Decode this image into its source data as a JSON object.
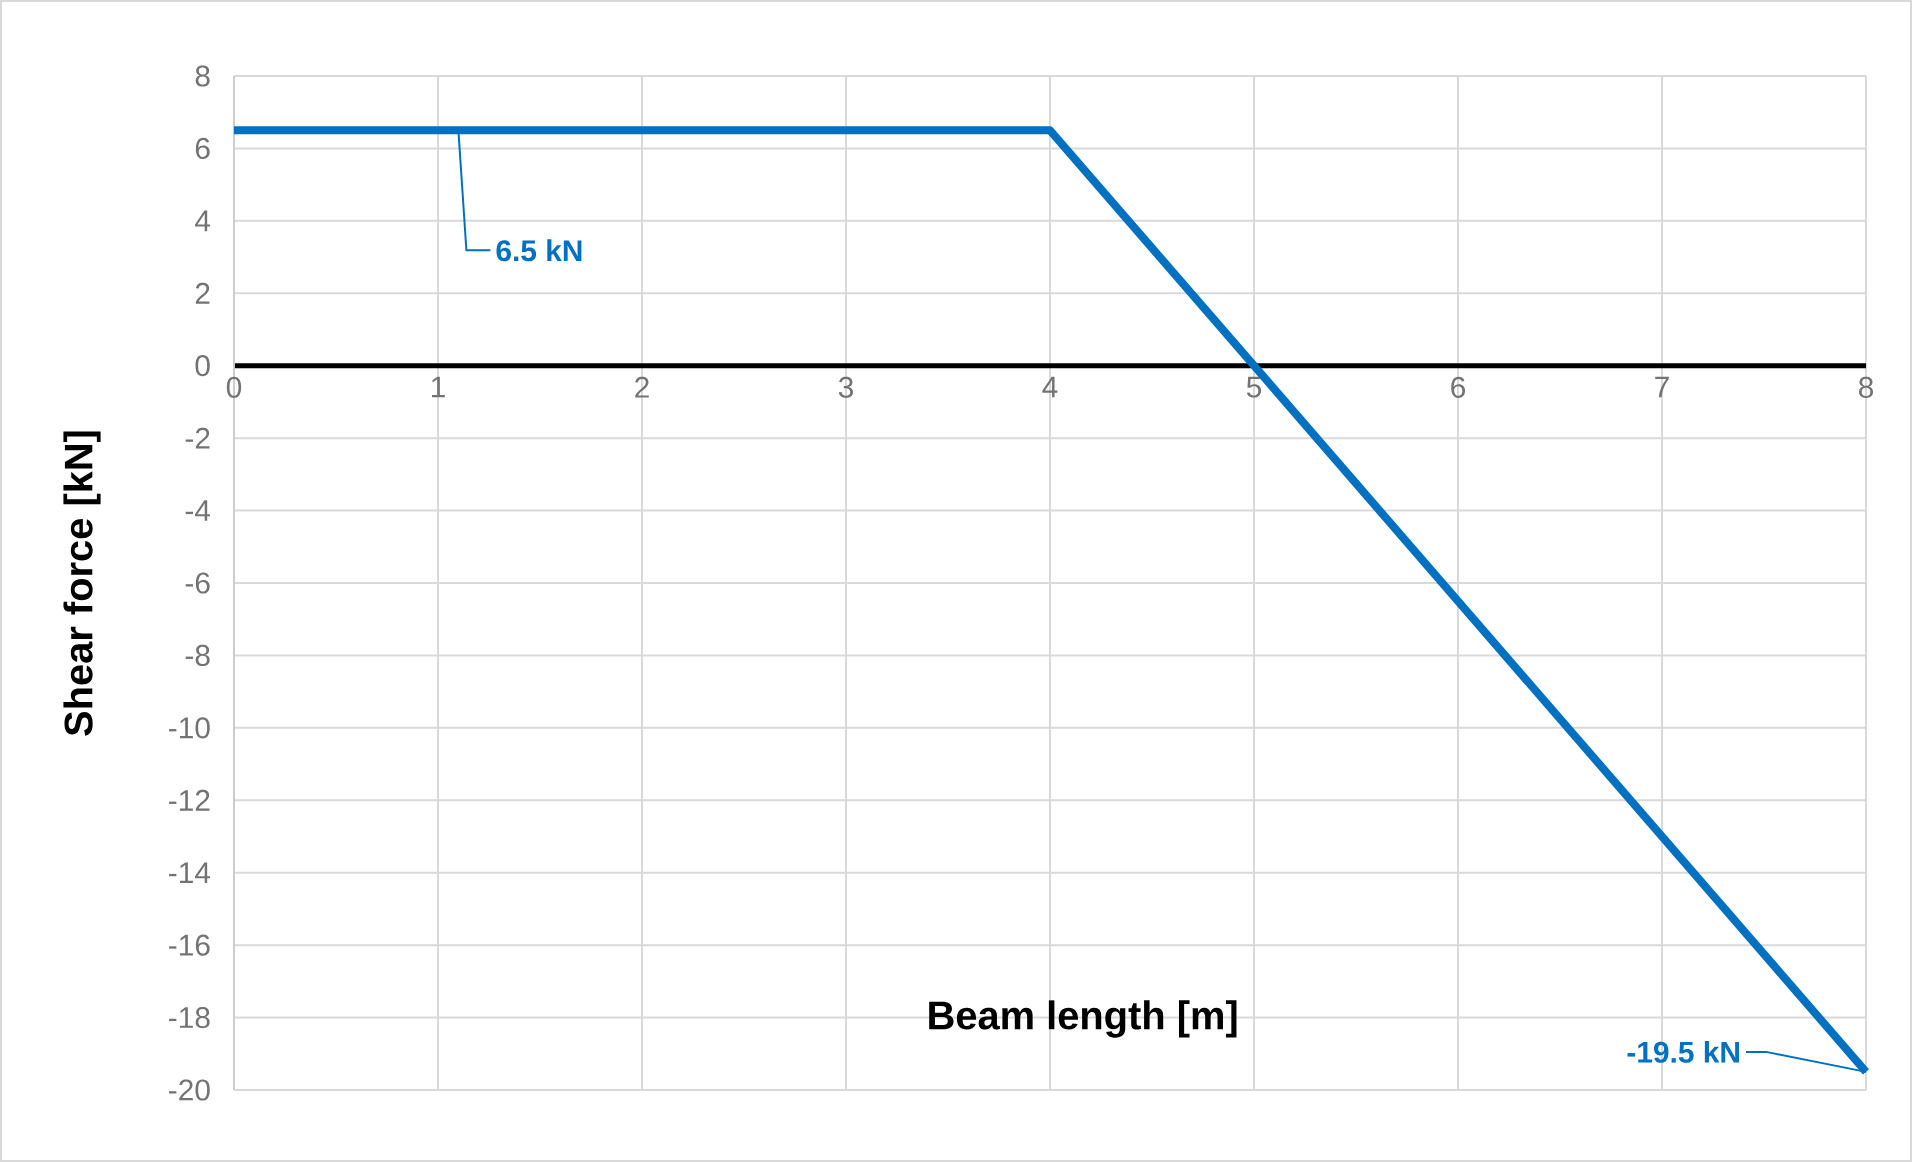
{
  "chart_data": {
    "type": "line",
    "xlabel": "Beam length [m]",
    "ylabel": "Shear force [kN]",
    "x": [
      0,
      4,
      8
    ],
    "values": [
      6.5,
      6.5,
      -19.5
    ],
    "color": "#0070c0",
    "xlim": [
      0,
      8
    ],
    "xticks": [
      0,
      1,
      2,
      3,
      4,
      5,
      6,
      7,
      8
    ],
    "ylim": [
      -20,
      8
    ],
    "yticks": [
      -20,
      -18,
      -16,
      -14,
      -12,
      -10,
      -8,
      -6,
      -4,
      -2,
      0,
      2,
      4,
      6,
      8
    ],
    "grid": true,
    "marker": "none",
    "line_style": "solid",
    "annotations": [
      {
        "text": "6.5 kN",
        "x": 1.1,
        "y": 6.5
      },
      {
        "text": "-19.5 kN",
        "x": 8,
        "y": -19.5
      }
    ]
  }
}
